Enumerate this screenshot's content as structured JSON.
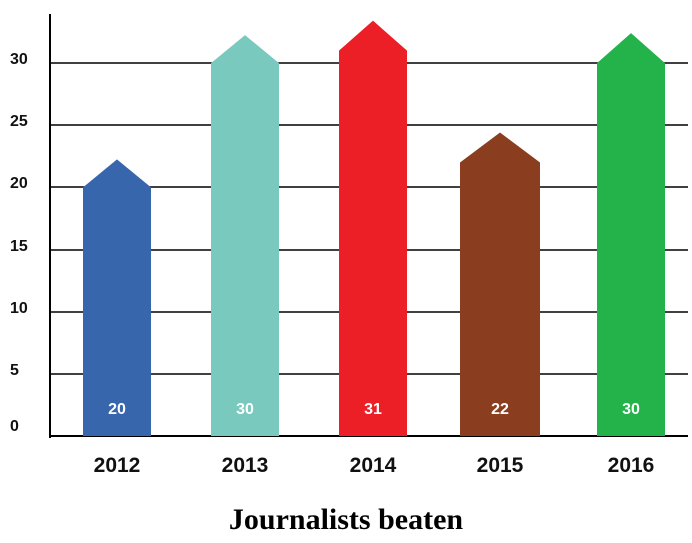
{
  "chart_data": {
    "type": "bar",
    "title": "Journalists beaten",
    "categories": [
      "2012",
      "2013",
      "2014",
      "2015",
      "2016"
    ],
    "values": [
      20,
      30,
      31,
      22,
      30
    ],
    "data_labels": [
      "20",
      "30",
      "31",
      "22",
      "30"
    ],
    "colors": [
      "#3766AD",
      "#79C9BE",
      "#EC1F27",
      "#8B3E1F",
      "#24B24A"
    ],
    "yticks": [
      0,
      5,
      10,
      15,
      20,
      25,
      30
    ],
    "ylim": [
      0,
      30
    ],
    "grid": true,
    "bar_shape": "arrow"
  }
}
